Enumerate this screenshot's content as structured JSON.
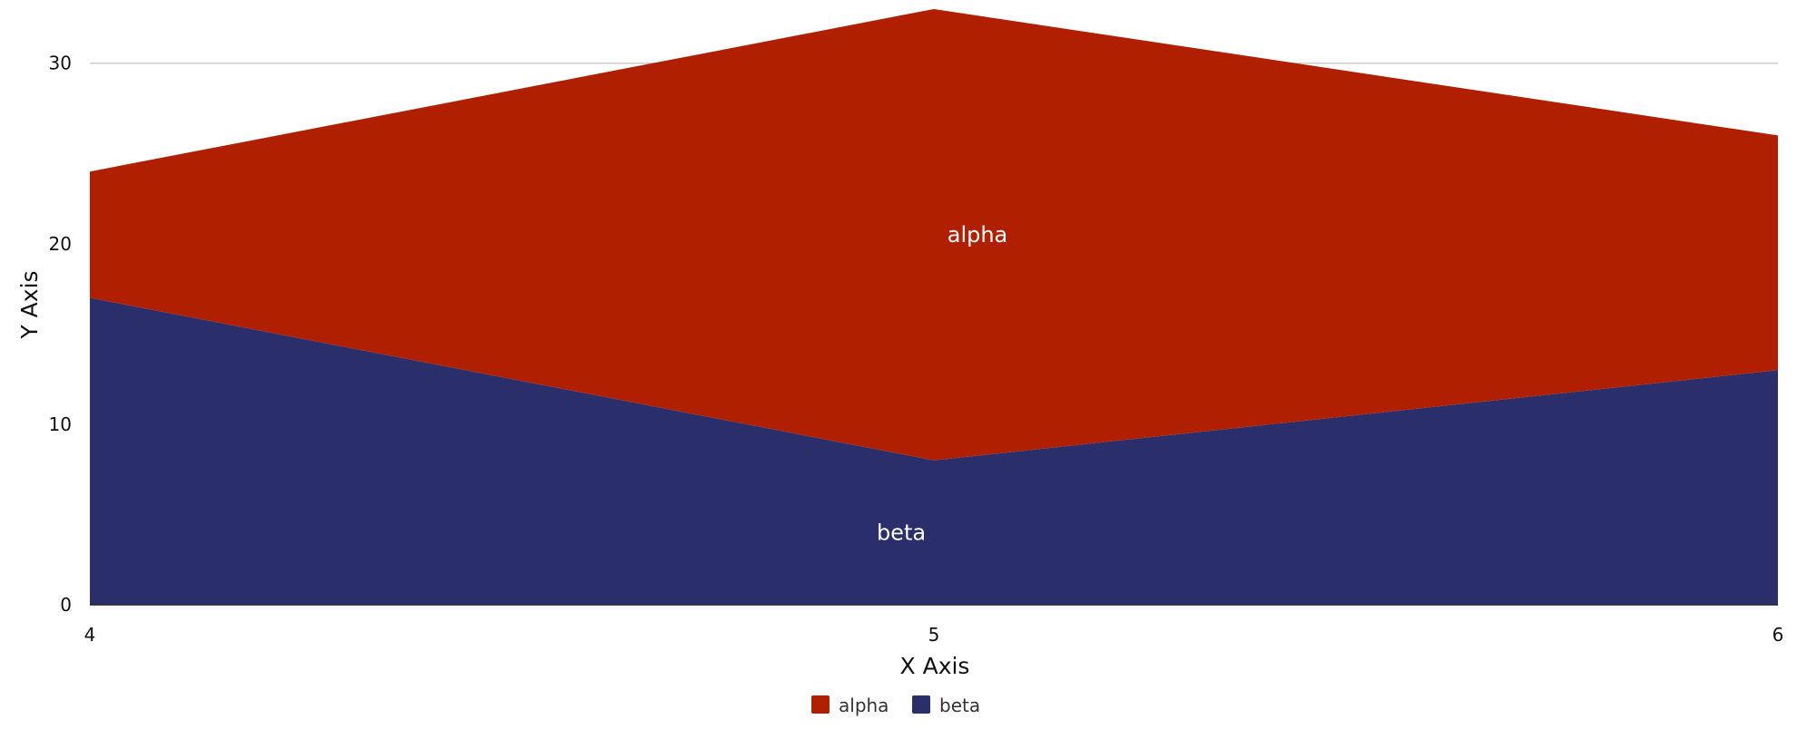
{
  "chart_data": {
    "type": "area",
    "stacked": true,
    "x": [
      4,
      5,
      6
    ],
    "series": [
      {
        "name": "beta",
        "values": [
          17,
          8,
          13
        ],
        "color": "#2a2e6b"
      },
      {
        "name": "alpha",
        "values": [
          7,
          25,
          13
        ],
        "color": "#b02000"
      }
    ],
    "xlabel": "X Axis",
    "ylabel": "Y Axis",
    "xticks": [
      4,
      5,
      6
    ],
    "yticks": [
      0,
      10,
      20,
      30
    ],
    "xlim": [
      4,
      6
    ],
    "ylim": [
      0,
      33
    ],
    "grid": "y-only",
    "gridline_color": "#cccccc",
    "area_labels": true,
    "legend": {
      "position": "bottom-center",
      "order": [
        "alpha",
        "beta"
      ]
    }
  }
}
